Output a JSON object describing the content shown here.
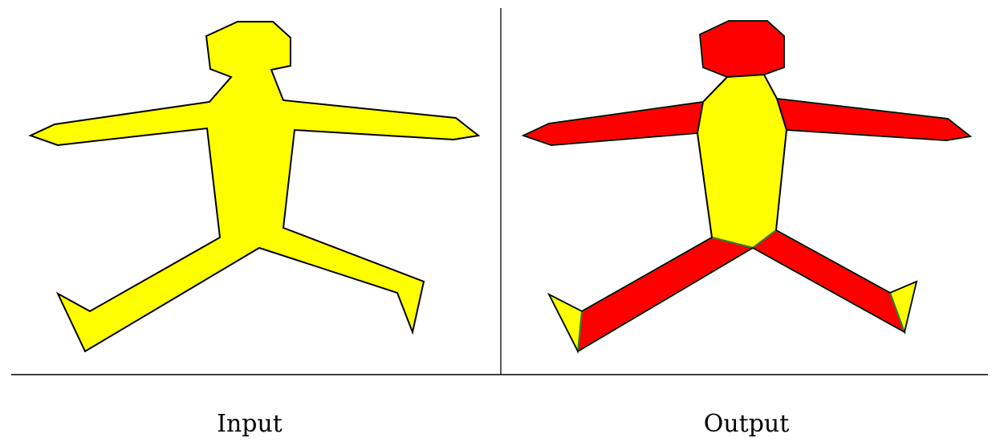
{
  "panels": [
    {
      "label": "Input"
    },
    {
      "label": "Output"
    }
  ],
  "colors": {
    "background": "#ffffff",
    "body_fill": "#ffff00",
    "limb_fill": "#ff0000",
    "piece_outline": "#2e7d32",
    "outline": "#000000",
    "divider": "#000000"
  }
}
